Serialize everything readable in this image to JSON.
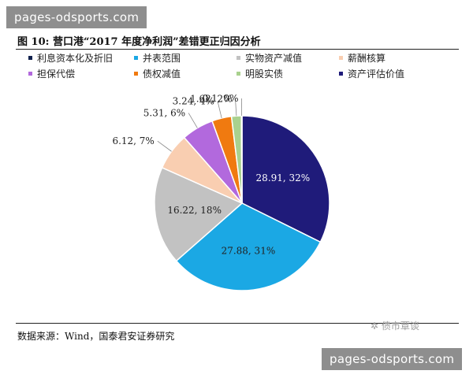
{
  "watermark_top": "pages-odsports.com",
  "watermark_bottom": "pages-odsports.com",
  "figure_title": "图 10: 营口港“2017 年度净利润”差错更正归因分析",
  "source_note": "数据来源：Wind，国泰君安证券研究",
  "stamp_text": "债市覃谈",
  "chart_data": {
    "type": "pie",
    "title": "营口港“2017 年度净利润”差错更正归因分析",
    "legend_position": "top",
    "slices": [
      {
        "name": "资产评估价值",
        "value": 28.91,
        "label": "28.91, 32%",
        "color": "#1f1b7a"
      },
      {
        "name": "并表范围",
        "value": 27.88,
        "label": "27.88, 31%",
        "color": "#1ba8e4"
      },
      {
        "name": "实物资产减值",
        "value": 16.22,
        "label": "16.22, 18%",
        "color": "#c2c2c2"
      },
      {
        "name": "薪酬核算",
        "value": 6.12,
        "label": "6.12, 7%",
        "color": "#f9ceb1"
      },
      {
        "name": "担保代偿",
        "value": 5.31,
        "label": "5.31, 6%",
        "color": "#b269dd"
      },
      {
        "name": "债权减值",
        "value": 3.24,
        "label": "3.24, 4%",
        "color": "#f07a10"
      },
      {
        "name": "明股实债",
        "value": 1.62,
        "label": "1.62, 2%",
        "color": "#a9d18e"
      },
      {
        "name": "利息资本化及折旧",
        "value": 0.1,
        "label": "0.1, 0%",
        "color": "#12224e"
      }
    ],
    "legend": [
      {
        "name": "利息资本化及折旧",
        "color": "#12224e"
      },
      {
        "name": "并表范围",
        "color": "#1ba8e4"
      },
      {
        "name": "实物资产减值",
        "color": "#c2c2c2"
      },
      {
        "name": "薪酬核算",
        "color": "#f9ceb1"
      },
      {
        "name": "担保代偿",
        "color": "#b269dd"
      },
      {
        "name": "债权减值",
        "color": "#f07a10"
      },
      {
        "name": "明股实债",
        "color": "#a9d18e"
      },
      {
        "name": "资产评估价值",
        "color": "#1f1b7a"
      }
    ]
  }
}
